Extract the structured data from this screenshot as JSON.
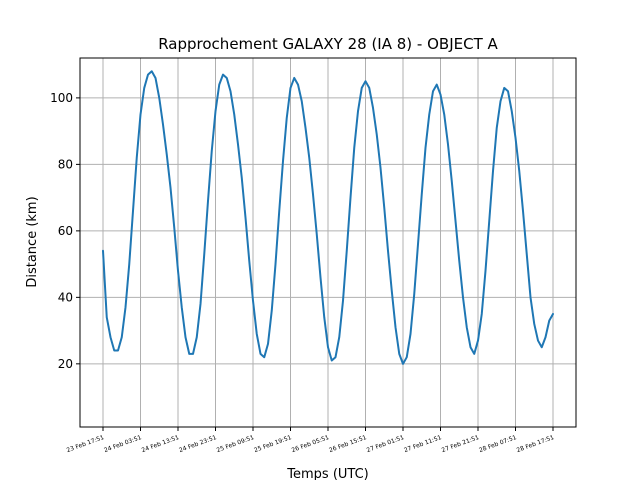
{
  "chart_data": {
    "type": "line",
    "title": "Rapprochement GALAXY 28 (IA 8) - OBJECT A",
    "xlabel": "Temps (UTC)",
    "ylabel": "Distance (km)",
    "ylim": [
      1,
      112
    ],
    "y_ticks": [
      20,
      40,
      60,
      80,
      100
    ],
    "x_ticks": [
      "23 Feb 17:51",
      "24 Feb 03:51",
      "24 Feb 13:51",
      "24 Feb 23:51",
      "25 Feb 09:51",
      "25 Feb 19:51",
      "26 Feb 05:51",
      "26 Feb 15:51",
      "27 Feb 01:51",
      "27 Feb 11:51",
      "27 Feb 21:51",
      "28 Feb 07:51",
      "28 Feb 17:51"
    ],
    "grid": true,
    "color": "#1f77b4",
    "series": [
      {
        "x_hours": [
          0,
          1,
          2,
          3,
          4,
          5,
          6,
          7,
          8,
          9,
          10,
          11,
          12,
          13,
          14,
          15,
          16,
          17,
          18,
          19,
          20,
          21,
          22,
          23,
          24,
          25,
          26,
          27,
          28,
          29,
          30,
          31,
          32,
          33,
          34,
          35,
          36,
          37,
          38,
          39,
          40,
          41,
          42,
          43,
          44,
          45,
          46,
          47,
          48,
          49,
          50,
          51,
          52,
          53,
          54,
          55,
          56,
          57,
          58,
          59,
          60,
          61,
          62,
          63,
          64,
          65,
          66,
          67,
          68,
          69,
          70,
          71,
          72,
          73,
          74,
          75,
          76,
          77,
          78,
          79,
          80,
          81,
          82,
          83,
          84,
          85,
          86,
          87,
          88,
          89,
          90,
          91,
          92,
          93,
          94,
          95,
          96,
          97,
          98,
          99,
          100,
          101,
          102,
          103,
          104,
          105,
          106,
          107,
          108,
          109,
          110,
          111,
          112,
          113,
          114,
          115,
          116,
          117,
          118,
          119,
          120
        ],
        "values": [
          54,
          34,
          28,
          24,
          24,
          28,
          37,
          50,
          66,
          82,
          95,
          103,
          107,
          108,
          106,
          100,
          92,
          83,
          73,
          61,
          48,
          37,
          28,
          23,
          23,
          28,
          38,
          53,
          69,
          84,
          96,
          104,
          107,
          106,
          102,
          95,
          86,
          76,
          64,
          51,
          39,
          29,
          23,
          22,
          26,
          36,
          50,
          66,
          81,
          94,
          103,
          106,
          104,
          99,
          91,
          82,
          71,
          59,
          46,
          34,
          25,
          21,
          22,
          28,
          39,
          54,
          70,
          85,
          96,
          103,
          105,
          103,
          97,
          89,
          79,
          67,
          54,
          42,
          31,
          23,
          20,
          22,
          29,
          41,
          56,
          71,
          85,
          95,
          102,
          104,
          101,
          95,
          86,
          75,
          63,
          51,
          40,
          31,
          25,
          23,
          27,
          35,
          48,
          63,
          78,
          91,
          99,
          103,
          102,
          96,
          88,
          78,
          66,
          53,
          40,
          32,
          27,
          25,
          28,
          33,
          35
        ]
      }
    ]
  }
}
